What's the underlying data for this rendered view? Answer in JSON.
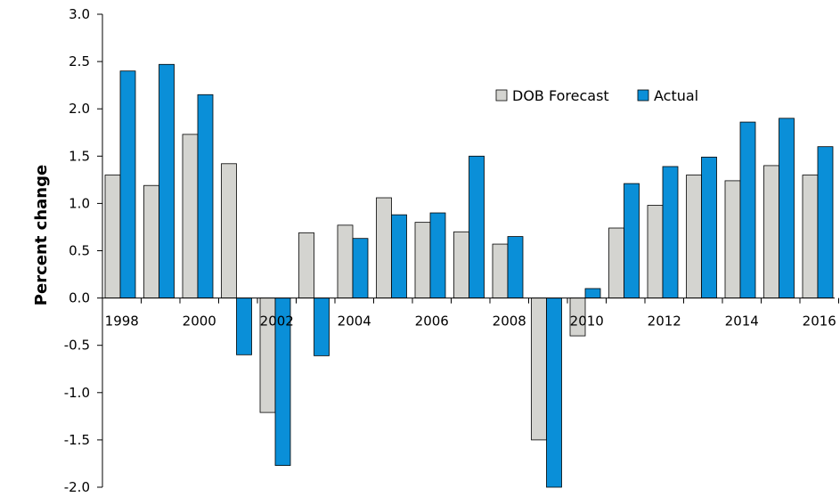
{
  "chart_data": {
    "type": "bar",
    "title": "",
    "xlabel": "",
    "ylabel": "Percent change",
    "ylim": [
      -2.0,
      3.0
    ],
    "y_ticks": [
      "3.0",
      "2.5",
      "2.0",
      "1.5",
      "1.0",
      "0.5",
      "0.0",
      "-0.5",
      "-1.0",
      "-1.5",
      "-2.0"
    ],
    "categories": [
      "1998",
      "1999",
      "2000",
      "2001",
      "2002",
      "2003",
      "2004",
      "2005",
      "2006",
      "2007",
      "2008",
      "2009",
      "2010",
      "2011",
      "2012",
      "2013",
      "2014",
      "2015",
      "2016"
    ],
    "x_tick_labels": [
      "1998",
      "2000",
      "2002",
      "2004",
      "2006",
      "2008",
      "2010",
      "2012",
      "2014",
      "2016"
    ],
    "series": [
      {
        "name": "DOB Forecast",
        "color": "#d4d4d0",
        "values": [
          1.3,
          1.19,
          1.73,
          1.42,
          -1.21,
          0.69,
          0.77,
          1.06,
          0.8,
          0.7,
          0.57,
          -1.5,
          -0.4,
          0.74,
          0.98,
          1.3,
          1.24,
          1.4,
          1.3
        ]
      },
      {
        "name": "Actual",
        "color": "#0a8fd8",
        "values": [
          2.4,
          2.47,
          2.15,
          -0.6,
          -1.77,
          -0.61,
          0.63,
          0.88,
          0.9,
          1.5,
          0.65,
          -2.0,
          0.1,
          1.21,
          1.39,
          1.49,
          1.86,
          1.9,
          1.6
        ]
      }
    ],
    "grid": false,
    "legend_position": "top-right"
  }
}
